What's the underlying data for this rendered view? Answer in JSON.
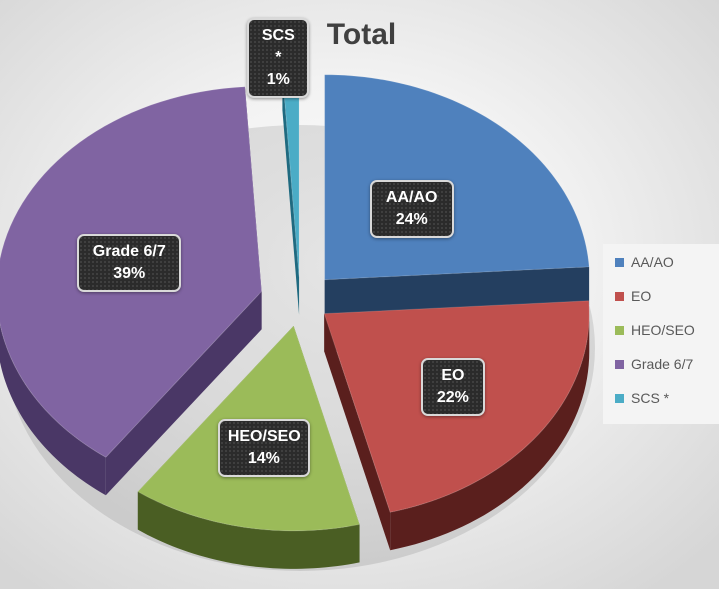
{
  "chart_data": {
    "type": "pie",
    "title": "Total",
    "style": "3d-exploded",
    "legend_position": "right",
    "series": [
      {
        "name": "",
        "slices": [
          {
            "label": "AA/AO",
            "value": 24,
            "display": "24%",
            "color": "#4f81bd",
            "side_color": "#243f60"
          },
          {
            "label": "EO",
            "value": 22,
            "display": "22%",
            "color": "#c0504d",
            "side_color": "#5a1f1d"
          },
          {
            "label": "HEO/SEO",
            "value": 14,
            "display": "14%",
            "color": "#9bbb59",
            "side_color": "#4a5e23"
          },
          {
            "label": "Grade 6/7",
            "value": 39,
            "display": "39%",
            "color": "#8064a2",
            "side_color": "#4a3766"
          },
          {
            "label": "SCS *",
            "value": 1,
            "display": "1%",
            "color": "#4bacc6",
            "side_color": "#1f6a80"
          }
        ]
      }
    ]
  }
}
